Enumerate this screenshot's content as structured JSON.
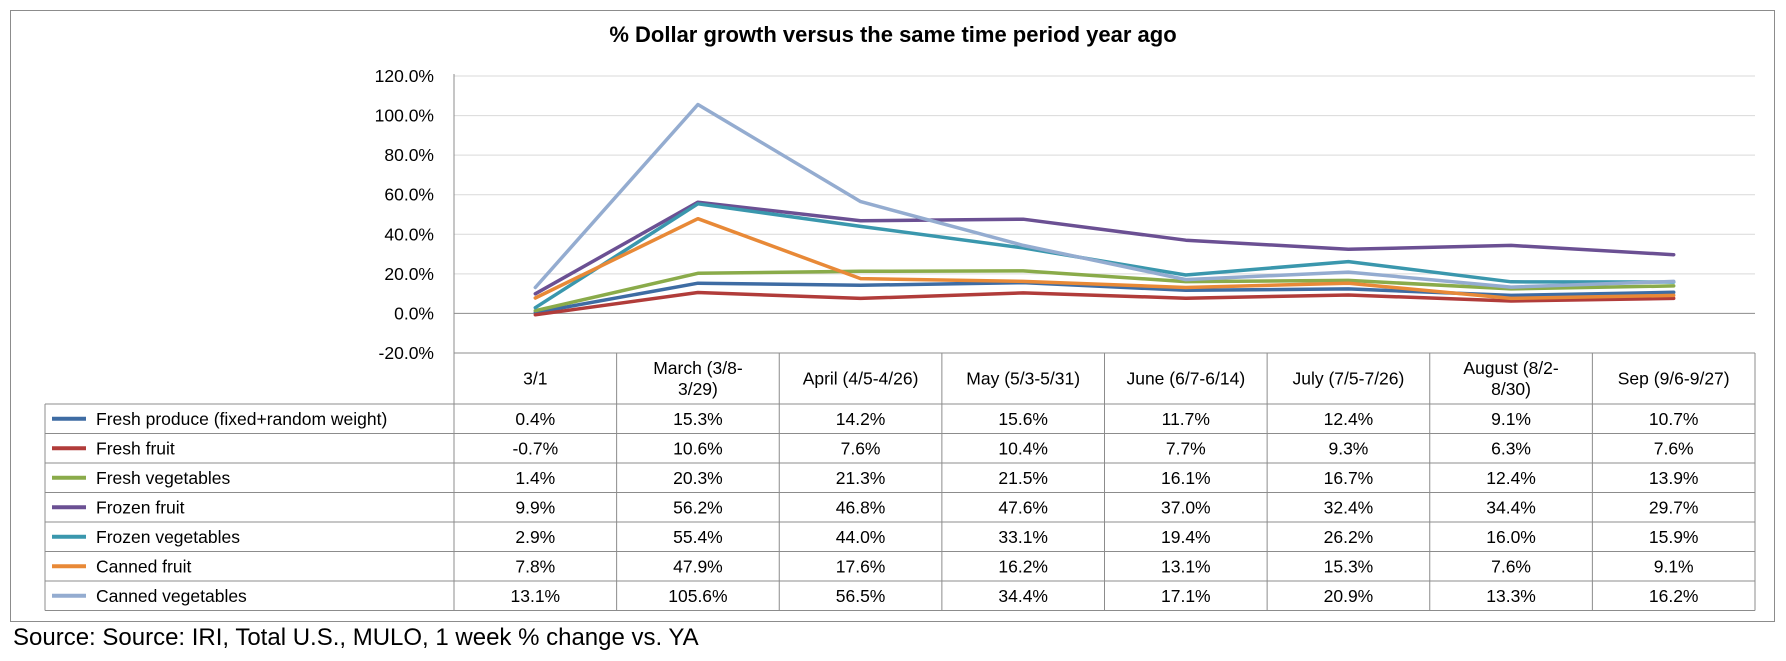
{
  "chart_data": {
    "type": "line",
    "title": "% Dollar growth versus the same time period year ago",
    "categories": [
      "3/1",
      "March (3/8-3/29)",
      "April (4/5-4/26)",
      "May (5/3-5/31)",
      "June (6/7-6/14)",
      "July (7/5-7/26)",
      "August (8/2-8/30)",
      "Sep (9/6-9/27)"
    ],
    "category_header_lines": [
      [
        "3/1"
      ],
      [
        "March (3/8-",
        "3/29)"
      ],
      [
        "April (4/5-4/26)"
      ],
      [
        "May (5/3-5/31)"
      ],
      [
        "June (6/7-6/14)"
      ],
      [
        "July (7/5-7/26)"
      ],
      [
        "August (8/2-",
        "8/30)"
      ],
      [
        "Sep (9/6-9/27)"
      ]
    ],
    "ylim": [
      -20,
      120
    ],
    "y_ticks": [
      -20,
      0,
      20,
      40,
      60,
      80,
      100,
      120
    ],
    "y_tick_labels": [
      "-20.0%",
      "0.0%",
      "20.0%",
      "40.0%",
      "60.0%",
      "80.0%",
      "100.0%",
      "120.0%"
    ],
    "grid": true,
    "legend": "data-table-below",
    "series": [
      {
        "name": "Fresh produce (fixed+random weight)",
        "color": "#3e6ca3",
        "values": [
          0.4,
          15.3,
          14.2,
          15.6,
          11.7,
          12.4,
          9.1,
          10.7
        ],
        "labels": [
          "0.4%",
          "15.3%",
          "14.2%",
          "15.6%",
          "11.7%",
          "12.4%",
          "9.1%",
          "10.7%"
        ]
      },
      {
        "name": "Fresh fruit",
        "color": "#b13c3a",
        "values": [
          -0.7,
          10.6,
          7.6,
          10.4,
          7.7,
          9.3,
          6.3,
          7.6
        ],
        "labels": [
          "-0.7%",
          "10.6%",
          "7.6%",
          "10.4%",
          "7.7%",
          "9.3%",
          "6.3%",
          "7.6%"
        ]
      },
      {
        "name": "Fresh vegetables",
        "color": "#8aab4a",
        "values": [
          1.4,
          20.3,
          21.3,
          21.5,
          16.1,
          16.7,
          12.4,
          13.9
        ],
        "labels": [
          "1.4%",
          "20.3%",
          "21.3%",
          "21.5%",
          "16.1%",
          "16.7%",
          "12.4%",
          "13.9%"
        ]
      },
      {
        "name": "Frozen fruit",
        "color": "#6b5093",
        "values": [
          9.9,
          56.2,
          46.8,
          47.6,
          37.0,
          32.4,
          34.4,
          29.7
        ],
        "labels": [
          "9.9%",
          "56.2%",
          "46.8%",
          "47.6%",
          "37.0%",
          "32.4%",
          "34.4%",
          "29.7%"
        ]
      },
      {
        "name": "Frozen vegetables",
        "color": "#3a97ad",
        "values": [
          2.9,
          55.4,
          44.0,
          33.1,
          19.4,
          26.2,
          16.0,
          15.9
        ],
        "labels": [
          "2.9%",
          "55.4%",
          "44.0%",
          "33.1%",
          "19.4%",
          "26.2%",
          "16.0%",
          "15.9%"
        ]
      },
      {
        "name": "Canned fruit",
        "color": "#e88937",
        "values": [
          7.8,
          47.9,
          17.6,
          16.2,
          13.1,
          15.3,
          7.6,
          9.1
        ],
        "labels": [
          "7.8%",
          "47.9%",
          "17.6%",
          "16.2%",
          "13.1%",
          "15.3%",
          "7.6%",
          "9.1%"
        ]
      },
      {
        "name": "Canned vegetables",
        "color": "#94acd0",
        "values": [
          13.1,
          105.6,
          56.5,
          34.4,
          17.1,
          20.9,
          13.3,
          16.2
        ],
        "labels": [
          "13.1%",
          "105.6%",
          "56.5%",
          "34.4%",
          "17.1%",
          "20.9%",
          "13.3%",
          "16.2%"
        ]
      }
    ]
  },
  "footer": {
    "source": "Source: Source: IRI, Total U.S., MULO, 1 week % change vs. YA"
  }
}
